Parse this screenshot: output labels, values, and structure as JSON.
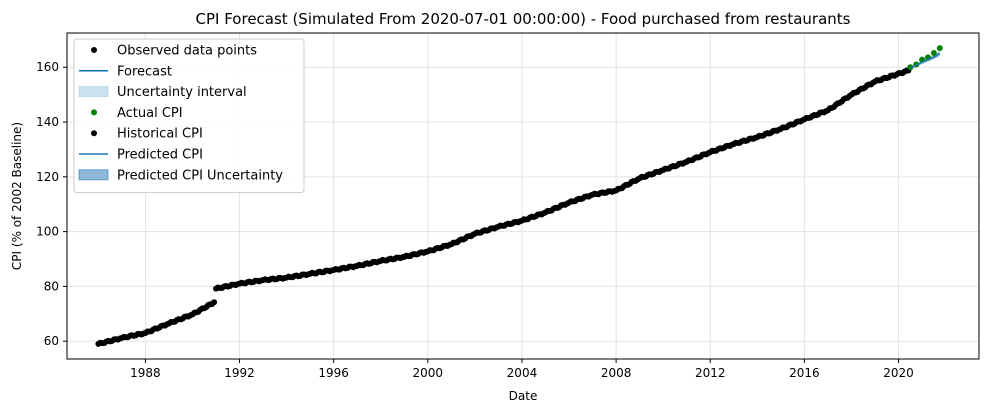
{
  "chart_data": {
    "type": "line",
    "title": "CPI Forecast (Simulated From 2020-07-01 00:00:00) - Food purchased from restaurants",
    "xlabel": "Date",
    "ylabel": "CPI (% of 2002 Baseline)",
    "xlim": [
      "1984-09-01",
      "2023-06-01"
    ],
    "ylim": [
      53.5,
      172.5
    ],
    "x_ticks": [
      "1988",
      "1992",
      "1996",
      "2000",
      "2004",
      "2008",
      "2012",
      "2016",
      "2020"
    ],
    "y_ticks": [
      "60",
      "80",
      "100",
      "120",
      "140",
      "160"
    ],
    "grid": true,
    "legend_position": "upper-left",
    "legend": [
      {
        "label": "Observed data points",
        "style": "dot",
        "color": "#000000"
      },
      {
        "label": "Forecast",
        "style": "line",
        "color": "#0072b2"
      },
      {
        "label": "Uncertainty interval",
        "style": "band",
        "color": "#a6cee3"
      },
      {
        "label": "Actual CPI",
        "style": "dot",
        "color": "#008000"
      },
      {
        "label": "Historical CPI",
        "style": "dot",
        "color": "#000000"
      },
      {
        "label": "Predicted CPI",
        "style": "line",
        "color": "#1f77b4"
      },
      {
        "label": "Predicted CPI Uncertainty",
        "style": "band",
        "color": "#1f77b4"
      }
    ],
    "series": [
      {
        "name": "Historical CPI",
        "kind": "points",
        "color": "#000000",
        "points": [
          [
            "1986-01-01",
            59.0
          ],
          [
            "1987-01-01",
            61.2
          ],
          [
            "1988-01-01",
            63.0
          ],
          [
            "1989-01-01",
            66.5
          ],
          [
            "1990-01-01",
            69.8
          ],
          [
            "1990-12-01",
            74.2
          ],
          [
            "1991-01-01",
            79.2
          ],
          [
            "1992-01-01",
            81.0
          ],
          [
            "1993-01-01",
            82.3
          ],
          [
            "1994-01-01",
            83.2
          ],
          [
            "1995-01-01",
            84.6
          ],
          [
            "1996-01-01",
            86.0
          ],
          [
            "1997-01-01",
            87.5
          ],
          [
            "1998-01-01",
            89.3
          ],
          [
            "1999-01-01",
            90.8
          ],
          [
            "2000-01-01",
            92.8
          ],
          [
            "2001-01-01",
            95.4
          ],
          [
            "2002-01-01",
            99.2
          ],
          [
            "2003-01-01",
            101.8
          ],
          [
            "2004-01-01",
            104.0
          ],
          [
            "2005-01-01",
            107.0
          ],
          [
            "2006-01-01",
            110.6
          ],
          [
            "2007-01-01",
            113.5
          ],
          [
            "2008-01-01",
            115.0
          ],
          [
            "2009-01-01",
            119.5
          ],
          [
            "2010-01-01",
            122.5
          ],
          [
            "2011-01-01",
            125.5
          ],
          [
            "2012-01-01",
            129.0
          ],
          [
            "2013-01-01",
            132.0
          ],
          [
            "2014-01-01",
            134.5
          ],
          [
            "2015-01-01",
            137.5
          ],
          [
            "2016-01-01",
            141.0
          ],
          [
            "2017-01-01",
            144.3
          ],
          [
            "2018-01-01",
            150.0
          ],
          [
            "2019-01-01",
            154.8
          ],
          [
            "2020-06-01",
            158.8
          ]
        ]
      },
      {
        "name": "Actual CPI",
        "kind": "points",
        "color": "#008000",
        "points": [
          [
            "2020-07-01",
            160.0
          ],
          [
            "2020-10-01",
            161.0
          ],
          [
            "2021-01-01",
            162.8
          ],
          [
            "2021-04-01",
            163.6
          ],
          [
            "2021-07-01",
            165.2
          ],
          [
            "2021-10-01",
            167.0
          ]
        ]
      },
      {
        "name": "Predicted CPI",
        "kind": "line",
        "color": "#1f77b4",
        "points": [
          [
            "2020-07-01",
            159.6
          ],
          [
            "2021-01-01",
            161.8
          ],
          [
            "2021-07-01",
            163.7
          ],
          [
            "2021-10-01",
            165.0
          ]
        ],
        "lower": [
          159.2,
          161.2,
          163.0,
          164.1
        ],
        "upper": [
          160.0,
          162.4,
          164.4,
          165.9
        ]
      }
    ]
  }
}
